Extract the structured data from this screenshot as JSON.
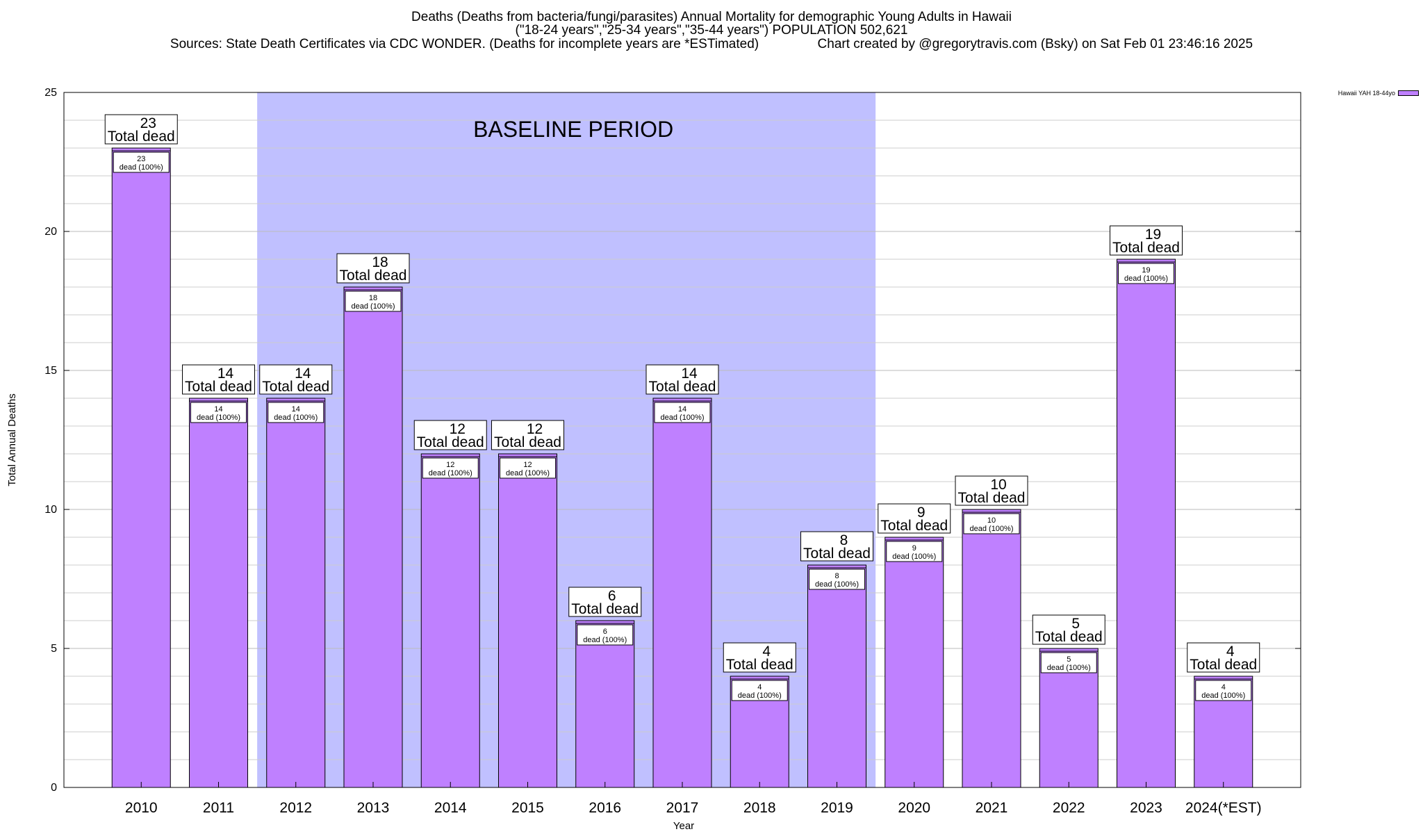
{
  "header": {
    "line1": "Deaths (Deaths from bacteria/fungi/parasites) Annual Mortality for demographic Young Adults in Hawaii",
    "line2": "(\"18-24 years\",\"25-34 years\",\"35-44 years\") POPULATION 502,621",
    "line3": "Sources: State Death Certificates via CDC WONDER. (Deaths for incomplete years are *ESTimated)                Chart created by @gregorytravis.com (Bsky) on Sat Feb 01 23:46:16 2025"
  },
  "legend": {
    "label": "Hawaii YAH 18-44yo"
  },
  "colors": {
    "bar": "#bf80ff",
    "baseline_band": "#c0c0ff",
    "label_box": "#ffffff"
  },
  "chart_data": {
    "type": "bar",
    "categories": [
      "2010",
      "2011",
      "2012",
      "2013",
      "2014",
      "2015",
      "2016",
      "2017",
      "2018",
      "2019",
      "2020",
      "2021",
      "2022",
      "2023",
      "2024(*EST)"
    ],
    "series": [
      {
        "name": "Hawaii YAH 18-44yo",
        "values": [
          23,
          14,
          14,
          18,
          12,
          12,
          6,
          14,
          4,
          8,
          9,
          10,
          5,
          19,
          4
        ]
      }
    ],
    "top_label_suffix": "Total dead",
    "inner_label_suffix": "dead (100%)",
    "xlabel": "Year",
    "ylabel": "Total Annual Deaths",
    "ylim": [
      0,
      25
    ],
    "yticks": [
      0,
      5,
      10,
      15,
      20,
      25
    ],
    "minor_grid_step": 1,
    "grid": true,
    "legend_position": "top-right",
    "annotation": {
      "text": "BASELINE PERIOD",
      "from_category": "2012",
      "to_category": "2019"
    }
  }
}
